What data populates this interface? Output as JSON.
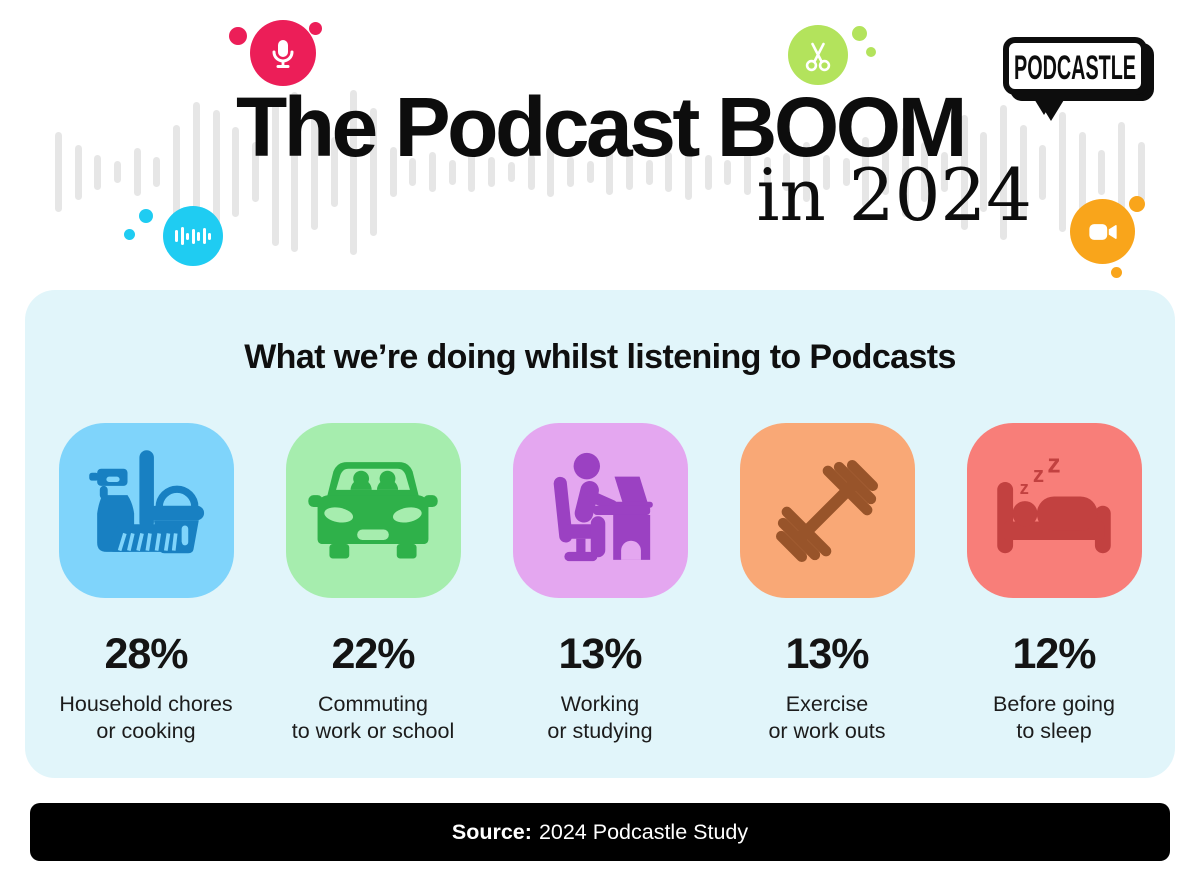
{
  "header": {
    "title": "The Podcast BOOM",
    "subtitle": "in 2024",
    "logo_text": "PODCASTLE",
    "decor": {
      "mic_color": "#EC1E58",
      "scissors_color": "#B3E35C",
      "audio_color": "#1FCCF2",
      "video_color": "#F9A51B"
    },
    "waveform": {
      "color": "#E6E6E6",
      "heights": [
        80,
        55,
        35,
        22,
        48,
        30,
        95,
        140,
        125,
        90,
        60,
        148,
        160,
        115,
        70,
        165,
        128,
        50,
        28,
        40,
        25,
        40,
        30,
        20,
        35,
        50,
        30,
        22,
        45,
        35,
        25,
        40,
        55,
        35,
        25,
        45,
        30,
        38,
        60,
        35,
        28,
        70,
        45,
        90,
        60,
        40,
        115,
        80,
        135,
        95,
        55,
        120,
        80,
        45,
        100,
        60
      ]
    },
    "audio_wave_icon": {
      "bars": [
        12,
        18,
        7,
        15,
        9,
        16,
        7
      ]
    }
  },
  "panel": {
    "background": "#E1F5FA",
    "heading": "What we’re doing whilst listening to Podcasts",
    "cards": [
      {
        "id": "household",
        "percent": "28%",
        "label_line1": "Household chores",
        "label_line2": "or cooking",
        "tile_color": "#7FD4FB",
        "icon_color": "#1880C2",
        "icon": "cleaning-icon"
      },
      {
        "id": "commuting",
        "percent": "22%",
        "label_line1": "Commuting",
        "label_line2": "to work or school",
        "tile_color": "#A6EDAE",
        "icon_color": "#2FB14A",
        "icon": "car-icon"
      },
      {
        "id": "working",
        "percent": "13%",
        "label_line1": "Working",
        "label_line2": "or studying",
        "tile_color": "#E4A7F0",
        "icon_color": "#9B41C2",
        "icon": "desk-icon"
      },
      {
        "id": "exercise",
        "percent": "13%",
        "label_line1": "Exercise",
        "label_line2": "or work outs",
        "tile_color": "#F9A876",
        "icon_color": "#98542A",
        "icon": "dumbbell-icon"
      },
      {
        "id": "sleep",
        "percent": "12%",
        "label_line1": "Before going",
        "label_line2": "to sleep",
        "tile_color": "#F87E79",
        "icon_color": "#C24140",
        "icon": "bed-icon"
      }
    ]
  },
  "footer": {
    "background": "#000000",
    "source_label": "Source:",
    "source_text": "2024 Podcastle Study"
  },
  "chart_data": {
    "type": "bar",
    "title": "What we’re doing whilst listening to Podcasts",
    "categories": [
      "Household chores or cooking",
      "Commuting to work or school",
      "Working or studying",
      "Exercise or work outs",
      "Before going to sleep"
    ],
    "values": [
      28,
      22,
      13,
      13,
      12
    ],
    "unit": "%",
    "source": "2024 Podcastle Study"
  }
}
